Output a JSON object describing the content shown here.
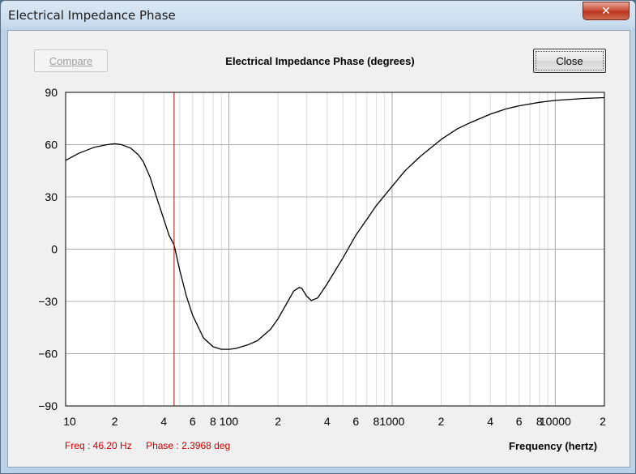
{
  "window": {
    "title": "Electrical Impedance Phase",
    "close_glyph": "✕"
  },
  "toolbar": {
    "compare_label": "Compare",
    "close_label": "Close"
  },
  "readout": {
    "freq": "Freq : 46.20 Hz",
    "phase": "Phase : 2.3968 deg"
  },
  "colors": {
    "curve": "#000000",
    "cursor": "#cc0000",
    "grid": "#c8c8c8",
    "plot_bg": "#ffffff"
  },
  "chart_data": {
    "type": "line",
    "title": "Electrical Impedance Phase (degrees)",
    "xlabel": "Frequency (hertz)",
    "ylabel": "",
    "xscale": "log",
    "xlim": [
      10,
      20000
    ],
    "ylim": [
      -90,
      90
    ],
    "y_ticks": [
      90,
      60,
      30,
      0,
      -30,
      -60,
      -90
    ],
    "y_tick_labels": [
      "90",
      "60",
      "30",
      "0",
      "−30",
      "−60",
      "−90"
    ],
    "x_tick_labels": [
      {
        "x": 10,
        "label": "10"
      },
      {
        "x": 20,
        "label": "2"
      },
      {
        "x": 40,
        "label": "4"
      },
      {
        "x": 60,
        "label": "6"
      },
      {
        "x": 80,
        "label": "8"
      },
      {
        "x": 100,
        "label": "100"
      },
      {
        "x": 200,
        "label": "2"
      },
      {
        "x": 400,
        "label": "4"
      },
      {
        "x": 600,
        "label": "6"
      },
      {
        "x": 800,
        "label": "8"
      },
      {
        "x": 1000,
        "label": "1000"
      },
      {
        "x": 2000,
        "label": "2"
      },
      {
        "x": 4000,
        "label": "4"
      },
      {
        "x": 6000,
        "label": "6"
      },
      {
        "x": 8000,
        "label": "8"
      },
      {
        "x": 10000,
        "label": "10000"
      },
      {
        "x": 20000,
        "label": "2"
      }
    ],
    "grid": true,
    "cursor_x": 46.2,
    "series": [
      {
        "x": [
          10,
          12,
          15,
          18,
          20,
          22,
          25,
          28,
          30,
          33,
          36,
          40,
          43,
          46.2,
          50,
          55,
          60,
          70,
          80,
          90,
          100,
          110,
          130,
          150,
          180,
          200,
          230,
          250,
          270,
          280,
          300,
          320,
          350,
          400,
          500,
          600,
          700,
          800,
          1000,
          1200,
          1500,
          2000,
          2500,
          3000,
          4000,
          5000,
          6000,
          8000,
          10000,
          15000,
          20000
        ],
        "y": [
          51,
          55,
          58.5,
          60,
          60.5,
          60,
          58,
          54,
          50,
          41,
          30,
          17,
          8,
          2.4,
          -12,
          -27,
          -38,
          -51,
          -56,
          -57.5,
          -57.5,
          -57,
          -55,
          -52.5,
          -46,
          -40,
          -30,
          -24,
          -22,
          -22.5,
          -27,
          -29.5,
          -28,
          -20,
          -5,
          8,
          17,
          25,
          36,
          45,
          53.5,
          63,
          69,
          72.5,
          77.5,
          80.5,
          82.3,
          84.3,
          85.4,
          86.5,
          87
        ]
      }
    ]
  }
}
